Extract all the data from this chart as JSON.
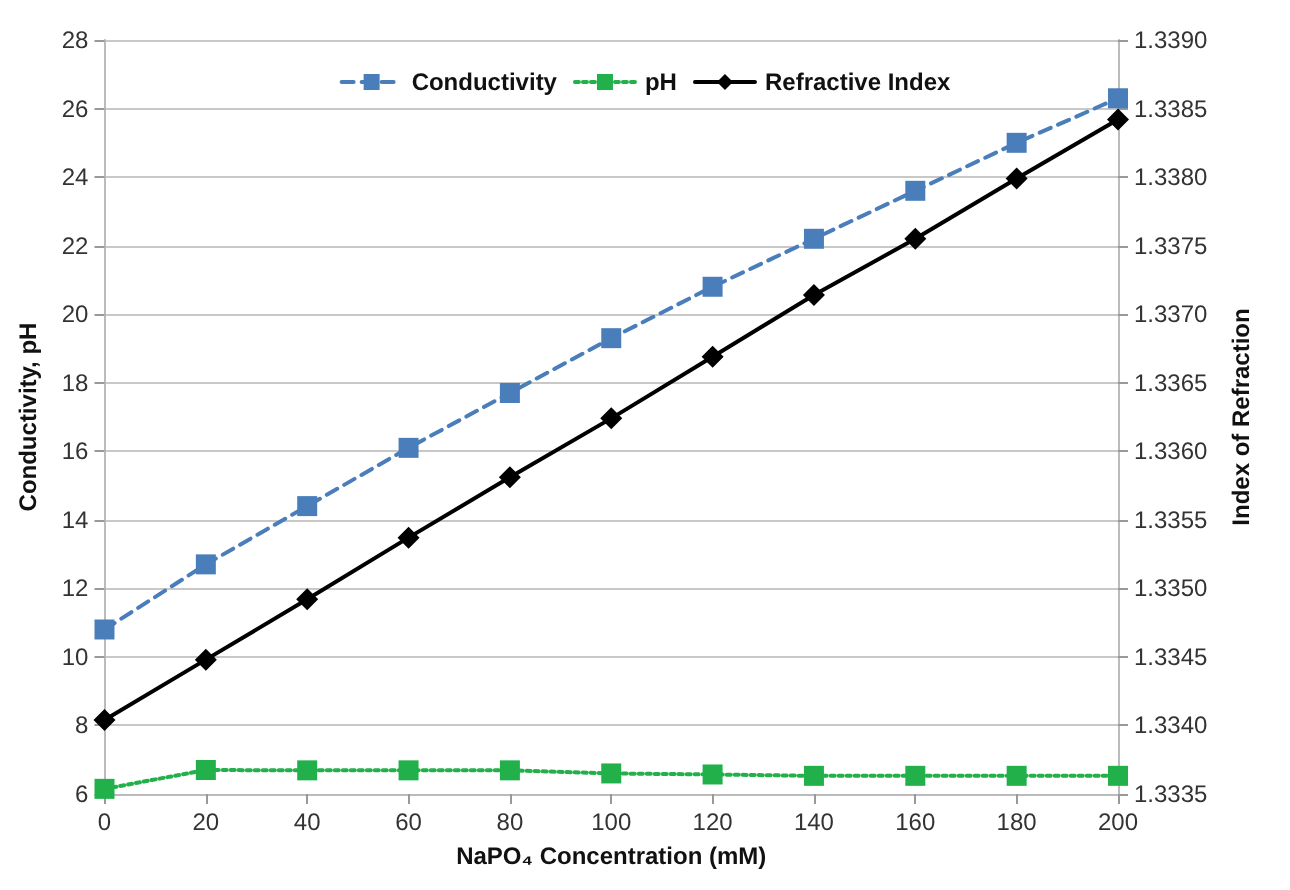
{
  "chart_data": {
    "type": "line",
    "xlabel": "NaPO₄ Concentration (mM)",
    "ylabel": "Conductivity, pH",
    "y2label": "Index of Refraction",
    "x": [
      0,
      20,
      40,
      60,
      80,
      100,
      120,
      140,
      160,
      180,
      200
    ],
    "xlim": [
      0,
      200
    ],
    "xticks": [
      0,
      20,
      40,
      60,
      80,
      100,
      120,
      140,
      160,
      180,
      200
    ],
    "ylim": [
      6,
      28
    ],
    "yticks": [
      6,
      8,
      10,
      12,
      14,
      16,
      18,
      20,
      22,
      24,
      26,
      28
    ],
    "y2lim": [
      1.3335,
      1.339
    ],
    "y2ticks": [
      {
        "value": 1.3335,
        "label": "1.3335"
      },
      {
        "value": 1.334,
        "label": "1.3340"
      },
      {
        "value": 1.3345,
        "label": "1.3345"
      },
      {
        "value": 1.335,
        "label": "1.3350"
      },
      {
        "value": 1.3355,
        "label": "1.3355"
      },
      {
        "value": 1.336,
        "label": "1.3360"
      },
      {
        "value": 1.3365,
        "label": "1.3365"
      },
      {
        "value": 1.337,
        "label": "1.3370"
      },
      {
        "value": 1.3375,
        "label": "1.3375"
      },
      {
        "value": 1.338,
        "label": "1.3380"
      },
      {
        "value": 1.3385,
        "label": "1.3385"
      },
      {
        "value": 1.339,
        "label": "1.3390"
      }
    ],
    "grid": "y",
    "legend": "top",
    "series": [
      {
        "name": "Conductivity",
        "color": "#4a7ebb",
        "marker": "square",
        "line_style": "dashed",
        "values": [
          10.8,
          12.7,
          14.4,
          16.1,
          17.7,
          19.3,
          20.8,
          22.2,
          23.6,
          25.0,
          26.3
        ]
      },
      {
        "name": "pH",
        "color": "#22b04b",
        "marker": "square",
        "line_style": "dotted",
        "values": [
          6.15,
          6.7,
          6.69,
          6.69,
          6.69,
          6.6,
          6.57,
          6.53,
          6.53,
          6.53,
          6.53
        ]
      },
      {
        "name": "Refractive Index",
        "color": "#000000",
        "marker": "diamond",
        "line_style": "solid",
        "axis": "y2",
        "values": [
          1.33404,
          1.33448,
          1.33492,
          1.33537,
          1.33581,
          1.33624,
          1.33669,
          1.33714,
          1.33755,
          1.33799,
          1.33842
        ]
      }
    ]
  }
}
